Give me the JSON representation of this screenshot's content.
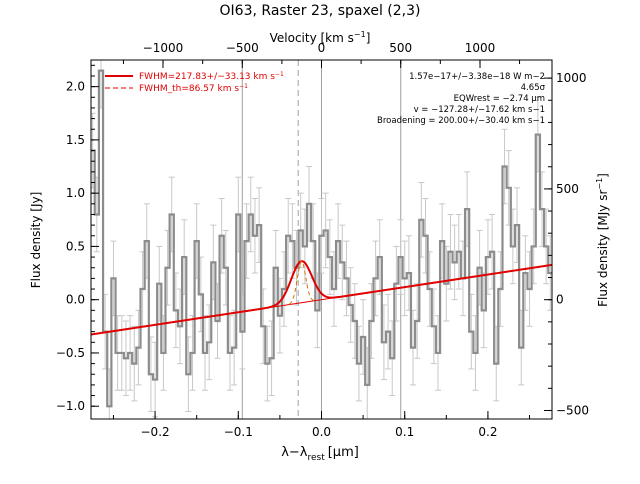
{
  "chart_data": {
    "type": "line",
    "title": "OI63, Raster 23, spaxel (2,3)",
    "xlabel": "λ−λ",
    "xlabel_sub": "rest",
    "xlabel_unit": "[μm]",
    "ylabel": "Flux density [Jy]",
    "top_axis_label": "Velocity [km s",
    "top_axis_label_sup": "−1",
    "top_axis_label_end": "]",
    "right_axis_label": "Flux density [MJy sr",
    "right_axis_label_sup": "−1",
    "right_axis_label_end": "]",
    "xlim": [
      -0.277,
      0.277
    ],
    "ylim": [
      -1.12,
      2.25
    ],
    "x_ticks": [
      -0.2,
      -0.1,
      0.0,
      0.1,
      0.2
    ],
    "x_tick_labels": [
      "−0.2",
      "−0.1",
      "0.0",
      "0.1",
      "0.2"
    ],
    "y_ticks": [
      -1.0,
      -0.5,
      0.0,
      0.5,
      1.0,
      1.5,
      2.0
    ],
    "y_tick_labels": [
      "−1.0",
      "−0.5",
      "0.0",
      "0.5",
      "1.0",
      "1.5",
      "2.0"
    ],
    "top_ticks_dx": [
      -0.1905,
      -0.0952,
      0.0,
      0.0952,
      0.1905
    ],
    "top_tick_labels": [
      "−1000",
      "−500",
      "0",
      "500",
      "1000"
    ],
    "right_ticks_y": [
      -1.04,
      0.0,
      1.04
    ],
    "right_tick_labels": [
      "−500",
      "0",
      "500",
      "1000"
    ],
    "right_ticks_y_all": [
      -1.04,
      0.0,
      1.04,
      2.08
    ],
    "vertical_lines_x": [
      -0.0952,
      0.0,
      0.0952
    ],
    "dashed_line_x": -0.028,
    "legend": [
      {
        "label": "FWHM=217.83+/−33.13 km s",
        "sup": "−1",
        "style": "solid"
      },
      {
        "label": "FWHM_th=86.57 km s",
        "sup": "−1",
        "style": "dashed"
      }
    ],
    "annotations": [
      "1.57e−17+/−3.38e−18 W m−2",
      "4.65σ",
      "EQWrest = −2.74 μm",
      "v = −127.28+/−17.62 km s−1",
      "Broadening = 200.00+/−30.40 km s−1"
    ],
    "continuum": {
      "slope": 1.18,
      "intercept": 0.0
    },
    "fit_gaussian": {
      "center": -0.024,
      "amplitude": 0.39,
      "sigma": 0.0123
    },
    "thermal_gaussian": {
      "center": -0.024,
      "amplitude": 0.39,
      "sigma": 0.005
    },
    "series": [
      {
        "name": "spectrum",
        "x": [
          -0.275,
          -0.27,
          -0.265,
          -0.26,
          -0.255,
          -0.25,
          -0.245,
          -0.24,
          -0.235,
          -0.23,
          -0.225,
          -0.22,
          -0.215,
          -0.21,
          -0.205,
          -0.2,
          -0.195,
          -0.19,
          -0.185,
          -0.18,
          -0.175,
          -0.17,
          -0.165,
          -0.16,
          -0.155,
          -0.15,
          -0.145,
          -0.14,
          -0.135,
          -0.13,
          -0.125,
          -0.12,
          -0.115,
          -0.11,
          -0.105,
          -0.1,
          -0.095,
          -0.09,
          -0.085,
          -0.08,
          -0.075,
          -0.07,
          -0.065,
          -0.06,
          -0.055,
          -0.05,
          -0.045,
          -0.04,
          -0.035,
          -0.03,
          -0.025,
          -0.02,
          -0.015,
          -0.01,
          -0.005,
          0.0,
          0.005,
          0.01,
          0.015,
          0.02,
          0.025,
          0.03,
          0.035,
          0.04,
          0.045,
          0.05,
          0.055,
          0.06,
          0.065,
          0.07,
          0.075,
          0.08,
          0.085,
          0.09,
          0.095,
          0.1,
          0.105,
          0.11,
          0.115,
          0.12,
          0.125,
          0.13,
          0.135,
          0.14,
          0.145,
          0.15,
          0.155,
          0.16,
          0.165,
          0.17,
          0.175,
          0.18,
          0.185,
          0.19,
          0.195,
          0.2,
          0.205,
          0.21,
          0.215,
          0.22,
          0.225,
          0.23,
          0.235,
          0.24,
          0.245,
          0.25,
          0.255,
          0.26,
          0.265,
          0.27,
          0.275
        ],
        "y": [
          1.4,
          0.8,
          2.15,
          -0.3,
          -1.0,
          0.2,
          -0.5,
          -0.5,
          -0.55,
          -0.5,
          -0.6,
          -0.45,
          0.1,
          0.55,
          -0.7,
          -0.75,
          0.15,
          -0.5,
          0.3,
          0.8,
          -0.1,
          -0.25,
          0.4,
          -0.7,
          -0.5,
          0.55,
          0.05,
          -0.5,
          -0.4,
          0.35,
          -0.2,
          0.6,
          0.3,
          -0.5,
          -0.45,
          0.8,
          -0.3,
          0.55,
          0.8,
          0.6,
          0.7,
          -0.25,
          -0.6,
          -0.55,
          0.3,
          -0.15,
          0.1,
          0.6,
          0.55,
          0.3,
          0.65,
          0.5,
          0.9,
          0.55,
          -0.1,
          0.6,
          0.65,
          0.4,
          0.1,
          0.55,
          0.35,
          0.2,
          -0.05,
          -0.2,
          -0.6,
          -0.35,
          -0.8,
          -0.2,
          0.2,
          0.4,
          -0.4,
          -0.3,
          -0.55,
          0.15,
          0.4,
          0.2,
          0.25,
          -0.45,
          -0.2,
          0.75,
          0.6,
          0.1,
          -0.25,
          -0.5,
          0.55,
          0.15,
          0.45,
          0.35,
          0.45,
          0.2,
          0.85,
          -0.3,
          -0.5,
          0.3,
          -0.1,
          0.4,
          0.45,
          -0.6,
          0.1,
          1.25,
          1.05,
          0.5,
          0.7,
          -0.45,
          0.25,
          0.1,
          0.5,
          1.55,
          0.85,
          0.5,
          0.25
        ],
        "err": [
          0.35,
          0.35,
          0.35,
          0.35,
          0.35,
          0.35,
          0.35,
          0.35,
          0.35,
          0.35,
          0.35,
          0.35,
          0.35,
          0.35,
          0.35,
          0.35,
          0.35,
          0.35,
          0.35,
          0.35,
          0.35,
          0.35,
          0.35,
          0.35,
          0.35,
          0.35,
          0.35,
          0.35,
          0.35,
          0.35,
          0.35,
          0.35,
          0.35,
          0.35,
          0.35,
          0.35,
          0.35,
          0.35,
          0.35,
          0.35,
          0.35,
          0.35,
          0.35,
          0.35,
          0.35,
          0.35,
          0.35,
          0.35,
          0.35,
          0.35,
          0.35,
          0.35,
          0.35,
          0.35,
          0.35,
          0.35,
          0.35,
          0.35,
          0.35,
          0.35,
          0.35,
          0.35,
          0.35,
          0.35,
          0.35,
          0.35,
          0.35,
          0.35,
          0.35,
          0.35,
          0.35,
          0.35,
          0.35,
          0.35,
          0.35,
          0.35,
          0.35,
          0.35,
          0.35,
          0.35,
          0.35,
          0.35,
          0.35,
          0.35,
          0.35,
          0.35,
          0.35,
          0.35,
          0.35,
          0.35,
          0.35,
          0.35,
          0.35,
          0.35,
          0.35,
          0.35,
          0.35,
          0.35,
          0.35,
          0.35,
          0.35,
          0.35,
          0.35,
          0.35,
          0.35,
          0.35,
          0.35,
          0.35,
          0.35,
          0.35,
          0.35
        ]
      }
    ],
    "colors": {
      "spectrum": "#8c8c8c",
      "errorbar": "#c8c8c8",
      "fit": "#e00000",
      "refline": "#a0a0a0"
    }
  }
}
